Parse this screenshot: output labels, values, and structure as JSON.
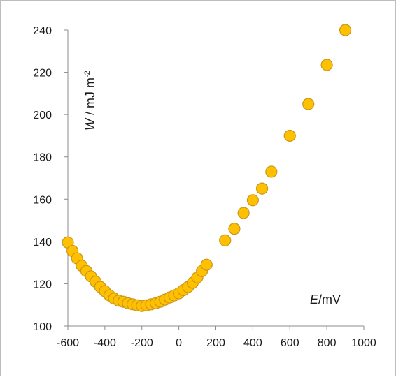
{
  "chart_data": {
    "type": "scatter",
    "title": "",
    "xlabel": {
      "var": "E",
      "unit": "/mV"
    },
    "ylabel": {
      "var": "W",
      "unit": " / mJ m",
      "exponent": "-2"
    },
    "xlim": [
      -600,
      1000
    ],
    "ylim": [
      100,
      240
    ],
    "xticks": [
      -600,
      -400,
      -200,
      0,
      200,
      400,
      600,
      800,
      1000
    ],
    "yticks": [
      100,
      120,
      140,
      160,
      180,
      200,
      220,
      240
    ],
    "grid": false,
    "legend": "none",
    "marker_color": "#ffc000",
    "marker_edge_color": "#c8961e",
    "axis_color": "#8c8c8c",
    "series": [
      {
        "x": [
          -600,
          -575,
          -550,
          -525,
          -500,
          -475,
          -450,
          -425,
          -400,
          -375,
          -350,
          -325,
          -300,
          -275,
          -250,
          -225,
          -200,
          -175,
          -150,
          -125,
          -100,
          -75,
          -50,
          -25,
          0,
          25,
          50,
          75,
          100,
          125,
          150,
          250,
          300,
          350,
          400,
          450,
          500,
          600,
          700,
          800,
          900
        ],
        "y": [
          139.5,
          135.5,
          132,
          128.5,
          126,
          123.5,
          121,
          118.5,
          116.5,
          114.5,
          113,
          112,
          111.5,
          110.8,
          110.3,
          109.8,
          109.5,
          109.8,
          110.3,
          110.8,
          111.5,
          112.5,
          113.5,
          114.5,
          115.5,
          117,
          118.5,
          120.5,
          123,
          126,
          129,
          140.5,
          146,
          153.5,
          159.5,
          165,
          173,
          190,
          205,
          223.5,
          240
        ]
      }
    ]
  }
}
